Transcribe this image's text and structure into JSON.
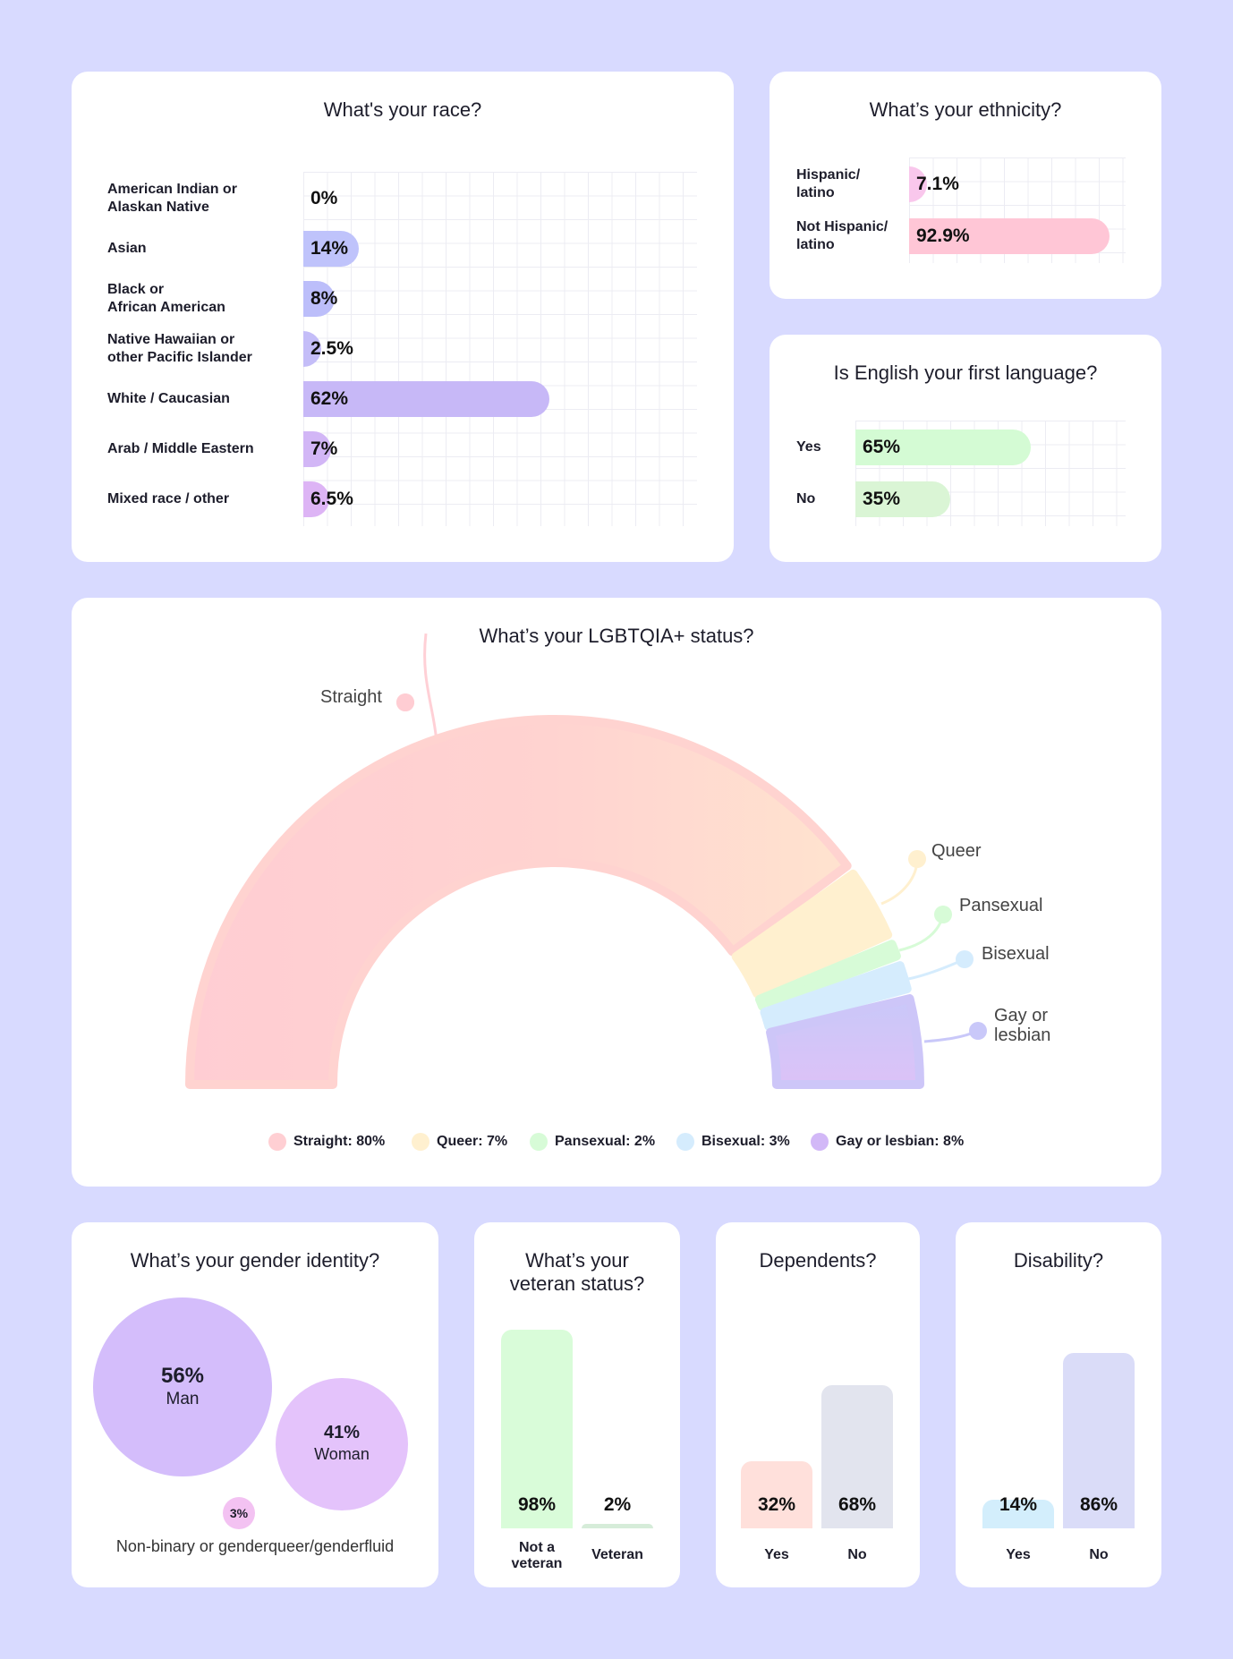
{
  "race": {
    "title": "What's your race?",
    "rows": [
      {
        "label": "American Indian or Alaskan Native",
        "l1": "American Indian or",
        "l2": "Alaskan Native",
        "value": 0,
        "text": "0%",
        "color": "#c5c8fb"
      },
      {
        "label": "Asian",
        "l1": "Asian",
        "l2": "",
        "value": 14,
        "text": "14%",
        "color": "#bfc3fb"
      },
      {
        "label": "Black or African American",
        "l1": "Black or",
        "l2": "African American",
        "value": 8,
        "text": "8%",
        "color": "#bcbefa"
      },
      {
        "label": "Native Hawaiian or other Pacific Islander",
        "l1": "Native Hawaiian or",
        "l2": "other Pacific Islander",
        "value": 2.5,
        "text": "2.5%",
        "color": "#c4bdf8"
      },
      {
        "label": "White / Caucasian",
        "l1": "White / Caucasian",
        "l2": "",
        "value": 62,
        "text": "62%",
        "color": "#c7b8f7"
      },
      {
        "label": "Arab / Middle Eastern",
        "l1": "Arab / Middle Eastern",
        "l2": "",
        "value": 7,
        "text": "7%",
        "color": "#d2b6f6"
      },
      {
        "label": "Mixed race / other",
        "l1": "Mixed race / other",
        "l2": "",
        "value": 6.5,
        "text": "6.5%",
        "color": "#ddb4f5"
      }
    ]
  },
  "ethnicity": {
    "title": "What’s your ethnicity?",
    "rows": [
      {
        "l1": "Hispanic/",
        "l2": "latino",
        "value": 7.1,
        "text": "7.1%",
        "color": "#f9c7ec"
      },
      {
        "l1": "Not Hispanic/",
        "l2": "latino",
        "value": 92.9,
        "text": "92.9%",
        "color": "#ffc6d6"
      }
    ]
  },
  "english": {
    "title": "Is English your first language?",
    "rows": [
      {
        "l1": "Yes",
        "value": 65,
        "text": "65%",
        "color": "#d4fbd4"
      },
      {
        "l1": "No",
        "value": 35,
        "text": "35%",
        "color": "#daf5d5"
      }
    ]
  },
  "lgbtq": {
    "title": "What’s your LGBTQIA+ status?",
    "callouts": {
      "straight": "Straight",
      "queer": "Queer",
      "pansexual": "Pansexual",
      "bisexual": "Bisexual",
      "gay_l1": "Gay or",
      "gay_l2": "lesbian"
    },
    "legend": [
      {
        "text": "Straight: 80%",
        "color": "#ffcfd3"
      },
      {
        "text": "Queer: 7%",
        "color": "#fff0cf"
      },
      {
        "text": "Pansexual: 2%",
        "color": "#d7fbd7"
      },
      {
        "text": "Bisexual: 3%",
        "color": "#d5ecfd"
      },
      {
        "text": "Gay or lesbian: 8%",
        "color": "#d2b8f7"
      }
    ]
  },
  "gender": {
    "title": "What’s your gender identity?",
    "man": {
      "pct": "56%",
      "label": "Man"
    },
    "woman": {
      "pct": "41%",
      "label": "Woman"
    },
    "nb": {
      "pct": "3%",
      "label": "Non-binary or genderqueer/genderfluid"
    }
  },
  "veteran": {
    "title_l1": "What’s your",
    "title_l2": "veteran status?",
    "bars": [
      {
        "l1": "Not a",
        "l2": "veteran",
        "value": 98,
        "text": "98%",
        "color": "#d9fcd9"
      },
      {
        "l1": "Veteran",
        "l2": "",
        "value": 2,
        "text": "2%",
        "color": "#d6ecd9"
      }
    ]
  },
  "dependents": {
    "title": "Dependents?",
    "bars": [
      {
        "l1": "Yes",
        "value": 32,
        "text": "32%",
        "color": "#ffe0db"
      },
      {
        "l1": "No",
        "value": 68,
        "text": "68%",
        "color": "#e2e4ee"
      }
    ]
  },
  "disability": {
    "title": "Disability?",
    "bars": [
      {
        "l1": "Yes",
        "value": 14,
        "text": "14%",
        "color": "#d3eefc"
      },
      {
        "l1": "No",
        "value": 86,
        "text": "86%",
        "color": "#dadcf8"
      }
    ]
  },
  "chart_data": [
    {
      "type": "bar",
      "orientation": "horizontal",
      "title": "What's your race?",
      "categories": [
        "American Indian or Alaskan Native",
        "Asian",
        "Black or African American",
        "Native Hawaiian or other Pacific Islander",
        "White / Caucasian",
        "Arab / Middle Eastern",
        "Mixed race / other"
      ],
      "values": [
        0,
        14,
        8,
        2.5,
        62,
        7,
        6.5
      ],
      "unit": "%"
    },
    {
      "type": "bar",
      "orientation": "horizontal",
      "title": "What’s your ethnicity?",
      "categories": [
        "Hispanic/latino",
        "Not Hispanic/latino"
      ],
      "values": [
        7.1,
        92.9
      ],
      "unit": "%"
    },
    {
      "type": "bar",
      "orientation": "horizontal",
      "title": "Is English your first language?",
      "categories": [
        "Yes",
        "No"
      ],
      "values": [
        65,
        35
      ],
      "unit": "%"
    },
    {
      "type": "pie",
      "variant": "half-donut",
      "title": "What’s your LGBTQIA+ status?",
      "categories": [
        "Straight",
        "Queer",
        "Pansexual",
        "Bisexual",
        "Gay or lesbian"
      ],
      "values": [
        80,
        7,
        2,
        3,
        8
      ],
      "unit": "%",
      "legend": "bottom"
    },
    {
      "type": "bubble",
      "title": "What’s your gender identity?",
      "categories": [
        "Man",
        "Woman",
        "Non-binary or genderqueer/genderfluid"
      ],
      "values": [
        56,
        41,
        3
      ],
      "unit": "%"
    },
    {
      "type": "bar",
      "title": "What’s your veteran status?",
      "categories": [
        "Not a veteran",
        "Veteran"
      ],
      "values": [
        98,
        2
      ],
      "unit": "%"
    },
    {
      "type": "bar",
      "title": "Dependents?",
      "categories": [
        "Yes",
        "No"
      ],
      "values": [
        32,
        68
      ],
      "unit": "%"
    },
    {
      "type": "bar",
      "title": "Disability?",
      "categories": [
        "Yes",
        "No"
      ],
      "values": [
        14,
        86
      ],
      "unit": "%"
    }
  ]
}
